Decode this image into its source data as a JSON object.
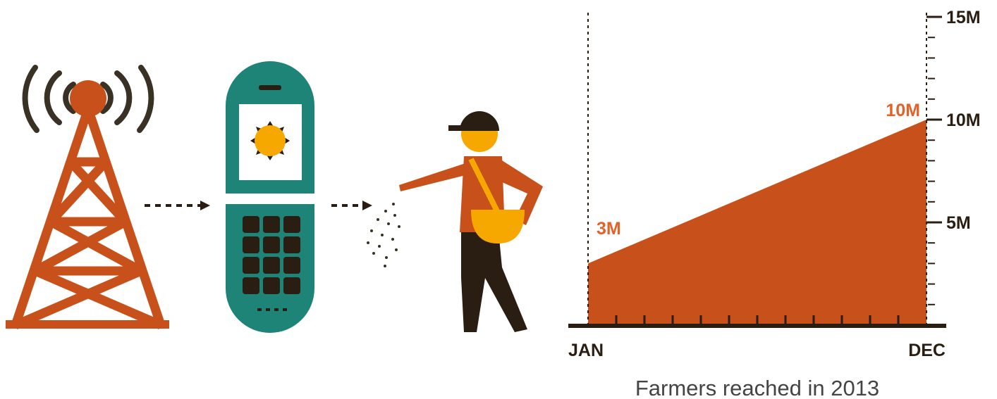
{
  "colors": {
    "tower": "#c8501a",
    "signal": "#3a3125",
    "phone": "#1e8478",
    "sun": "#f7a800",
    "dark": "#2a1d12",
    "area_fill": "#c8501a",
    "value_label": "#e2622a"
  },
  "icons": {
    "tower": "cell-tower-icon",
    "phone": "mobile-phone-icon",
    "farmer": "farmer-sowing-icon",
    "weather": "sun-icon"
  },
  "chart_data": {
    "type": "area",
    "x": [
      "JAN",
      "DEC"
    ],
    "values": [
      3,
      10
    ],
    "value_unit": "M",
    "value_labels": [
      "3M",
      "10M"
    ],
    "y_ticks": [
      5,
      10,
      15
    ],
    "y_tick_labels": [
      "5M",
      "10M",
      "15M"
    ],
    "ylim": [
      0,
      15
    ],
    "x_axis_labels": [
      "JAN",
      "DEC"
    ],
    "x_minor_ticks": 12,
    "caption": "Farmers reached in 2013",
    "grid": false
  }
}
